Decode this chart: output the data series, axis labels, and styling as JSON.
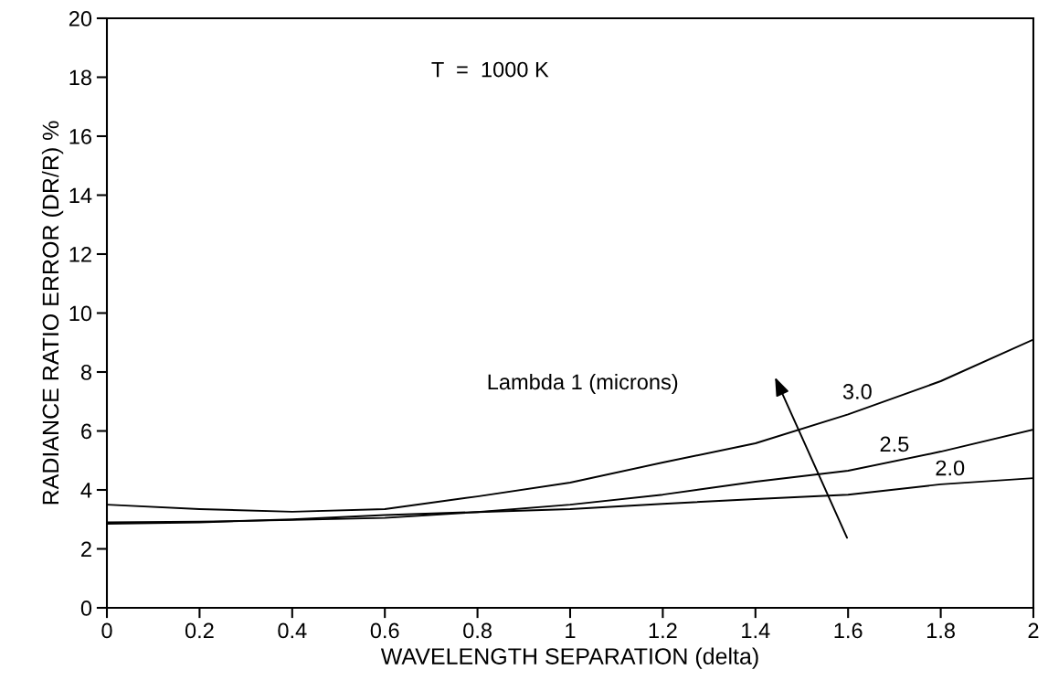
{
  "chart_data": {
    "type": "line",
    "xlabel": "WAVELENGTH SEPARATION (delta)",
    "ylabel": "RADIANCE RATIO ERROR (DR/R) %",
    "x": [
      0,
      0.2,
      0.4,
      0.6,
      0.8,
      1.0,
      1.2,
      1.4,
      1.6,
      1.8,
      2.0
    ],
    "series": [
      {
        "name": "3.0",
        "color": "#000000",
        "values": [
          3.5,
          3.35,
          3.26,
          3.35,
          3.78,
          4.25,
          4.93,
          5.58,
          6.56,
          7.69,
          9.1
        ]
      },
      {
        "name": "2.5",
        "color": "#000000",
        "values": [
          2.9,
          2.92,
          2.98,
          3.05,
          3.25,
          3.5,
          3.84,
          4.28,
          4.65,
          5.3,
          6.05
        ]
      },
      {
        "name": "2.0",
        "color": "#000000",
        "values": [
          2.85,
          2.9,
          3.0,
          3.15,
          3.25,
          3.35,
          3.53,
          3.69,
          3.84,
          4.19,
          4.4
        ]
      }
    ],
    "annotations": [
      "T  =  1000 K",
      "Lambda 1 (microns)"
    ],
    "xlim": [
      0,
      2
    ],
    "xticks": [
      0,
      0.2,
      0.4,
      0.6,
      0.8,
      {
        "value": 1.0,
        "label": "1"
      },
      1.2,
      1.4,
      1.6,
      1.8,
      2
    ],
    "ylim": [
      0,
      20
    ],
    "yticks": [
      0,
      2,
      4,
      6,
      8,
      10,
      12,
      14,
      16,
      18,
      20
    ],
    "grid": false,
    "legend": false,
    "marker": "none",
    "line_style": "solid"
  }
}
